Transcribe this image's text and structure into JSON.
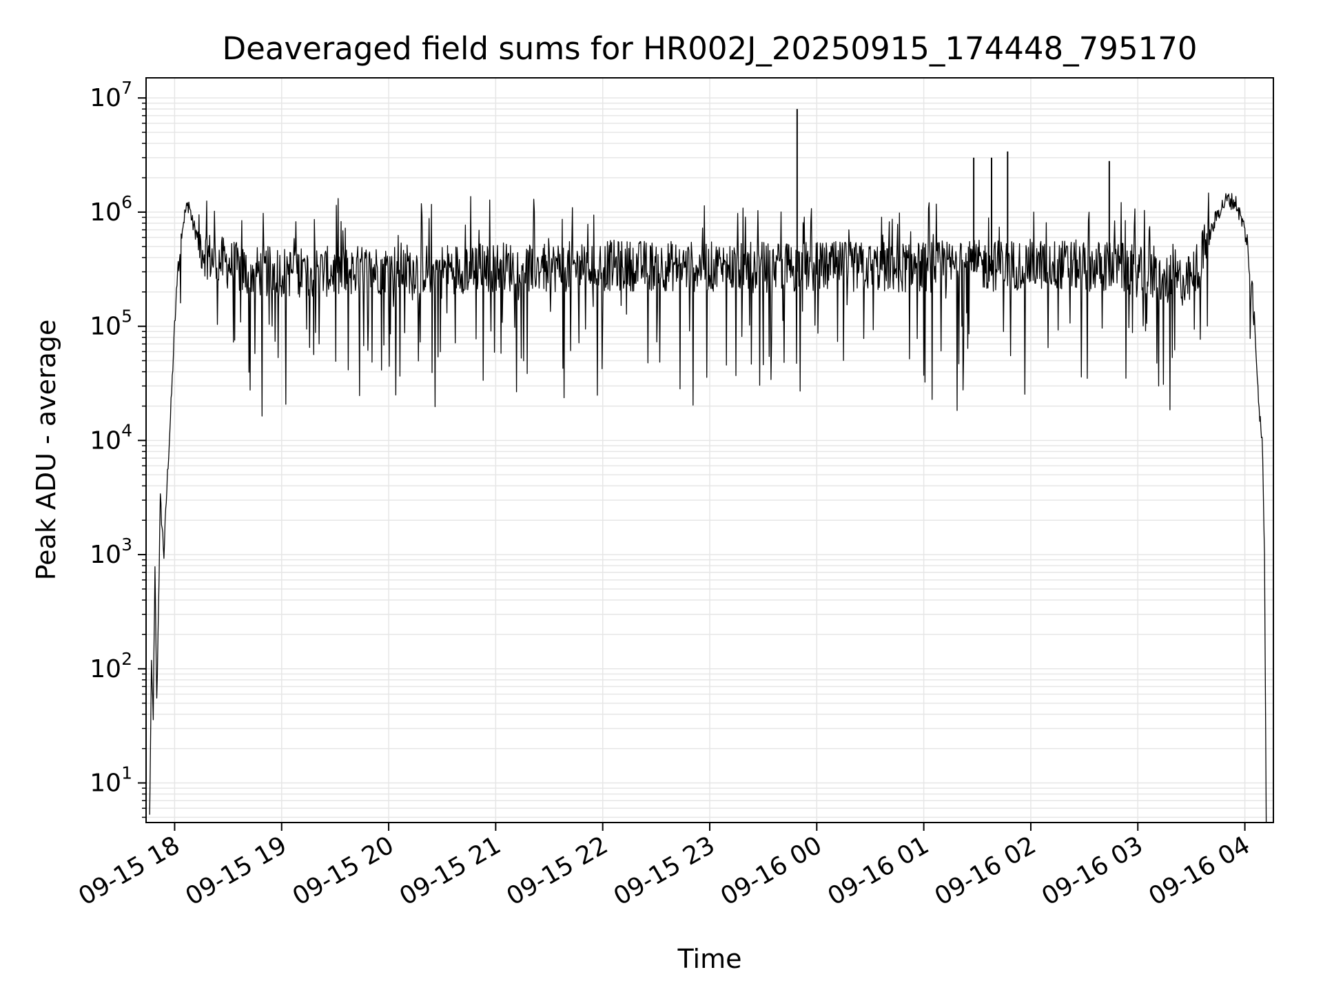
{
  "chart_data": {
    "type": "line",
    "title": "Deaveraged field sums for HR002J_20250915_174448_795170",
    "xlabel": "Time",
    "ylabel": "Peak ADU - average",
    "yscale": "log",
    "ylim": [
      4.5,
      15000000
    ],
    "xlim": [
      "2025-09-15 17:44",
      "2025-09-16 04:16"
    ],
    "grid": true,
    "line_color": "#000000",
    "grid_color": "#e6e6e6",
    "x_ticks": [
      {
        "label": "09-15 18",
        "time": "2025-09-15 18:00"
      },
      {
        "label": "09-15 19",
        "time": "2025-09-15 19:00"
      },
      {
        "label": "09-15 20",
        "time": "2025-09-15 20:00"
      },
      {
        "label": "09-15 21",
        "time": "2025-09-15 21:00"
      },
      {
        "label": "09-15 22",
        "time": "2025-09-15 22:00"
      },
      {
        "label": "09-15 23",
        "time": "2025-09-15 23:00"
      },
      {
        "label": "09-16 00",
        "time": "2025-09-16 00:00"
      },
      {
        "label": "09-16 01",
        "time": "2025-09-16 01:00"
      },
      {
        "label": "09-16 02",
        "time": "2025-09-16 02:00"
      },
      {
        "label": "09-16 03",
        "time": "2025-09-16 03:00"
      },
      {
        "label": "09-16 04",
        "time": "2025-09-16 04:00"
      }
    ],
    "y_ticks": [
      {
        "base": "10",
        "exp": "1",
        "value": 10
      },
      {
        "base": "10",
        "exp": "2",
        "value": 100
      },
      {
        "base": "10",
        "exp": "3",
        "value": 1000
      },
      {
        "base": "10",
        "exp": "4",
        "value": 10000
      },
      {
        "base": "10",
        "exp": "5",
        "value": 100000
      },
      {
        "base": "10",
        "exp": "6",
        "value": 1000000
      },
      {
        "base": "10",
        "exp": "7",
        "value": 10000000
      }
    ],
    "series": [
      {
        "x": [
          "2025-09-15 17:46",
          "2025-09-15 17:47",
          "2025-09-15 17:48",
          "2025-09-15 17:49",
          "2025-09-15 17:50",
          "2025-09-15 17:52",
          "2025-09-15 17:54",
          "2025-09-15 17:56",
          "2025-09-15 17:58",
          "2025-09-15 18:00",
          "2025-09-15 18:02",
          "2025-09-15 18:04",
          "2025-09-15 18:06",
          "2025-09-15 18:08",
          "2025-09-15 18:10",
          "2025-09-15 18:15",
          "2025-09-15 18:20",
          "2025-09-15 18:30",
          "2025-09-15 18:40",
          "2025-09-15 19:00",
          "2025-09-15 19:30",
          "2025-09-15 20:00",
          "2025-09-15 20:30",
          "2025-09-15 21:00",
          "2025-09-15 21:30",
          "2025-09-15 22:00",
          "2025-09-15 22:30",
          "2025-09-15 23:00",
          "2025-09-15 23:30",
          "2025-09-15 23:50",
          "2025-09-16 00:00",
          "2025-09-16 00:30",
          "2025-09-16 01:00",
          "2025-09-16 01:30",
          "2025-09-16 02:00",
          "2025-09-16 02:30",
          "2025-09-16 02:50",
          "2025-09-16 03:00",
          "2025-09-16 03:15",
          "2025-09-16 03:30",
          "2025-09-16 03:40",
          "2025-09-16 03:45",
          "2025-09-16 03:50",
          "2025-09-16 03:55",
          "2025-09-16 04:00",
          "2025-09-16 04:05",
          "2025-09-16 04:08",
          "2025-09-16 04:10",
          "2025-09-16 04:11",
          "2025-09-16 04:12"
        ],
        "y": [
          5,
          100,
          40,
          700,
          50,
          3000,
          1000,
          5000,
          20000,
          100000,
          300000,
          700000,
          1000000,
          1200000,
          800000,
          500000,
          400000,
          350000,
          300000,
          300000,
          300000,
          320000,
          320000,
          330000,
          330000,
          340000,
          340000,
          330000,
          330000,
          330000,
          330000,
          330000,
          330000,
          340000,
          350000,
          340000,
          330000,
          300000,
          250000,
          250000,
          600000,
          1000000,
          1300000,
          1200000,
          700000,
          150000,
          20000,
          8000,
          1000,
          5
        ]
      }
    ],
    "annotations": [
      {
        "time": "2025-09-15 23:49",
        "value": 8000000
      },
      {
        "time": "2025-09-16 01:28",
        "value": 3000000
      },
      {
        "time": "2025-09-16 01:38",
        "value": 3000000
      },
      {
        "time": "2025-09-16 01:47",
        "value": 3400000
      },
      {
        "time": "2025-09-16 02:44",
        "value": 2800000
      }
    ]
  }
}
